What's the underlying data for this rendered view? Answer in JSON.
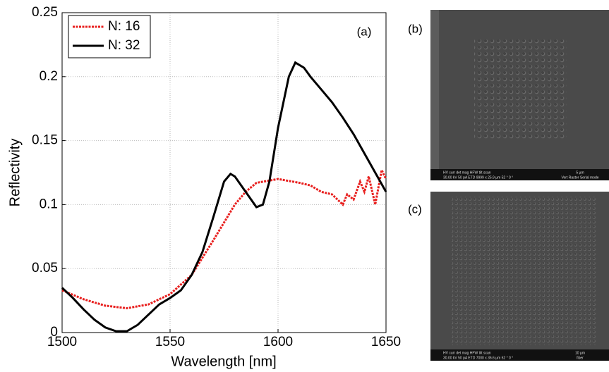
{
  "chart_data": {
    "type": "line",
    "xlabel": "Wavelength [nm]",
    "ylabel": "Reflectivity",
    "annotation": "(a)",
    "xlim": [
      1500,
      1650
    ],
    "xticks": [
      1500,
      1550,
      1600,
      1650
    ],
    "ylim": [
      0,
      0.25
    ],
    "yticks": [
      0,
      0.05,
      0.1,
      0.15,
      0.2,
      0.25
    ],
    "grid": true,
    "legend": "upper left",
    "series": [
      {
        "name": "N: 16",
        "color": "#e8201f",
        "dash": true,
        "x": [
          1500,
          1510,
          1520,
          1530,
          1540,
          1550,
          1560,
          1570,
          1580,
          1585,
          1590,
          1600,
          1610,
          1615,
          1620,
          1625,
          1630,
          1632,
          1635,
          1638,
          1640,
          1642,
          1645,
          1648,
          1650
        ],
        "values": [
          0.033,
          0.026,
          0.021,
          0.019,
          0.022,
          0.03,
          0.045,
          0.072,
          0.1,
          0.11,
          0.117,
          0.12,
          0.117,
          0.115,
          0.11,
          0.108,
          0.1,
          0.108,
          0.104,
          0.118,
          0.11,
          0.122,
          0.1,
          0.127,
          0.12
        ]
      },
      {
        "name": "N: 32",
        "color": "#000000",
        "dash": false,
        "x": [
          1500,
          1505,
          1510,
          1515,
          1520,
          1525,
          1530,
          1535,
          1540,
          1545,
          1550,
          1555,
          1560,
          1565,
          1570,
          1575,
          1578,
          1580,
          1585,
          1590,
          1593,
          1596,
          1600,
          1605,
          1608,
          1612,
          1615,
          1620,
          1625,
          1630,
          1635,
          1640,
          1645,
          1650
        ],
        "values": [
          0.035,
          0.027,
          0.018,
          0.01,
          0.004,
          0.001,
          0.001,
          0.006,
          0.014,
          0.022,
          0.027,
          0.033,
          0.045,
          0.063,
          0.09,
          0.118,
          0.124,
          0.122,
          0.11,
          0.098,
          0.1,
          0.118,
          0.16,
          0.2,
          0.211,
          0.207,
          0.2,
          0.19,
          0.18,
          0.168,
          0.155,
          0.14,
          0.125,
          0.11
        ]
      }
    ]
  },
  "images": [
    {
      "label": "(b)",
      "bar_header": "HV   curr   det   mag   HFW   tilt   scan",
      "bar_values": "30.00 kV  50 pA  ETD  9999 x  25.9 µm  52 °  0 °",
      "scale": "5 µm",
      "mode": "Vert Raster Serial mode"
    },
    {
      "label": "(c)",
      "bar_header": "HV   curr   det   mag   HFW   tilt   scan",
      "bar_values": "30.00 kV  50 pA  ETD  7000 x  36.6 µm  52 °  0 °",
      "scale": "10 µm",
      "mode": "fiber"
    }
  ]
}
